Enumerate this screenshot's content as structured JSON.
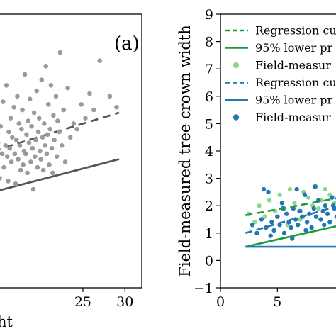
{
  "chart_data": [
    {
      "type": "scatter",
      "panel_label": "(a)",
      "xlabel_fragment": "ht",
      "x_ticks": [
        "25",
        "30"
      ],
      "xlim": [
        14.3,
        32
      ],
      "ylim": [
        -1,
        9
      ],
      "grid": false,
      "colors": {
        "points": "#9a9a9a",
        "line": "#555555"
      },
      "series": [
        {
          "kind": "line",
          "style": "dashed",
          "x": [
            14.3,
            29.3
          ],
          "y": [
            4.0,
            5.4
          ]
        },
        {
          "kind": "line",
          "style": "solid",
          "x": [
            14.3,
            29.3
          ],
          "y": [
            2.5,
            3.7
          ]
        },
        {
          "kind": "points",
          "x": [
            14.7,
            14.9,
            15.1,
            15.2,
            15.4,
            15.5,
            15.6,
            15.8,
            15.9,
            16.0,
            16.1,
            16.2,
            16.3,
            16.4,
            16.5,
            16.6,
            16.8,
            16.9,
            17.0,
            17.1,
            17.2,
            17.3,
            17.4,
            17.5,
            17.6,
            17.7,
            17.8,
            17.9,
            18.0,
            18.1,
            18.2,
            18.3,
            18.4,
            18.5,
            18.6,
            18.7,
            18.8,
            18.9,
            19.0,
            19.1,
            19.2,
            19.3,
            19.4,
            19.5,
            19.6,
            19.7,
            19.8,
            19.9,
            20.0,
            20.1,
            20.2,
            20.3,
            20.4,
            20.5,
            20.6,
            20.7,
            20.8,
            20.9,
            21.0,
            21.1,
            21.2,
            21.3,
            21.4,
            21.5,
            21.6,
            21.8,
            21.9,
            22.0,
            22.2,
            22.3,
            22.5,
            22.7,
            22.9,
            23.2,
            23.5,
            23.9,
            24.3,
            24.8,
            25.3,
            25.8,
            26.3,
            27.0,
            28.2,
            29.0
          ],
          "y": [
            3.6,
            4.3,
            3.0,
            4.9,
            3.9,
            5.8,
            3.4,
            4.2,
            6.4,
            3.8,
            2.9,
            4.7,
            4.1,
            5.2,
            3.6,
            4.5,
            5.6,
            3.9,
            2.8,
            4.4,
            6.0,
            3.7,
            5.0,
            4.2,
            3.3,
            4.8,
            5.5,
            3.5,
            4.0,
            6.8,
            3.9,
            4.6,
            3.2,
            5.1,
            4.3,
            5.9,
            3.6,
            4.9,
            4.1,
            2.6,
            5.4,
            3.8,
            4.4,
            6.2,
            3.4,
            4.7,
            5.2,
            4.0,
            3.7,
            6.6,
            4.5,
            3.3,
            5.0,
            4.2,
            7.1,
            3.9,
            4.6,
            5.7,
            3.5,
            4.8,
            6.4,
            4.1,
            3.2,
            5.3,
            4.4,
            6.0,
            3.8,
            5.1,
            4.7,
            7.6,
            4.2,
            5.5,
            3.6,
            6.3,
            4.5,
            5.0,
            4.8,
            5.7,
            5.2,
            6.1,
            5.5,
            7.3,
            6.0,
            5.6
          ]
        }
      ]
    },
    {
      "type": "scatter",
      "ylabel": "Field-measured tree crown width",
      "x_ticks": [
        "0",
        "5"
      ],
      "y_ticks": [
        "−1",
        "0",
        "1",
        "2",
        "3",
        "4",
        "5",
        "6",
        "7",
        "8",
        "9"
      ],
      "xlim": [
        0,
        11.2
      ],
      "ylim": [
        -1,
        9
      ],
      "grid": false,
      "legend_placement": "top-right",
      "legend": [
        {
          "label": "Regression cu",
          "marker": "dashed-line",
          "color": "#1a9c3c"
        },
        {
          "label": "95% lower pr",
          "marker": "solid-line",
          "color": "#1a9c3c"
        },
        {
          "label": "Field-measur",
          "marker": "dot",
          "color": "#8fd694"
        },
        {
          "label": "Regression cu",
          "marker": "dashed-line",
          "color": "#1f77b4"
        },
        {
          "label": "95% lower pr",
          "marker": "solid-line",
          "color": "#1f77b4"
        },
        {
          "label": "Field-measur",
          "marker": "dot",
          "color": "#1f77b4"
        }
      ],
      "series": [
        {
          "kind": "line",
          "style": "dashed",
          "color": "#1a9c3c",
          "x": [
            2.2,
            11.2
          ],
          "y": [
            1.65,
            2.35
          ]
        },
        {
          "kind": "line",
          "style": "solid",
          "color": "#1a9c3c",
          "x": [
            2.2,
            11.2
          ],
          "y": [
            0.5,
            1.35
          ]
        },
        {
          "kind": "line",
          "style": "dashed",
          "color": "#1f77b4",
          "x": [
            2.2,
            11.2
          ],
          "y": [
            1.0,
            2.1
          ]
        },
        {
          "kind": "line",
          "style": "solid",
          "color": "#1f77b4",
          "x": [
            2.2,
            11.2
          ],
          "y": [
            0.5,
            0.5
          ]
        },
        {
          "kind": "points",
          "color": "#8fd694",
          "x": [
            2.5,
            3.0,
            3.4,
            3.9,
            4.3,
            4.8,
            5.2,
            5.6,
            6.1,
            6.5,
            6.9,
            7.3,
            7.7,
            8.1,
            8.4,
            8.8,
            9.2,
            9.6,
            10.0,
            10.4,
            10.8,
            5.9,
            7.0,
            8.6
          ],
          "y": [
            1.7,
            1.4,
            2.0,
            1.6,
            2.2,
            1.8,
            2.4,
            1.9,
            2.6,
            2.1,
            1.8,
            2.5,
            2.3,
            2.0,
            2.7,
            2.2,
            2.6,
            2.4,
            2.1,
            2.8,
            2.3,
            1.3,
            1.5,
            1.9
          ]
        },
        {
          "kind": "points",
          "color": "#1f77b4",
          "x": [
            2.8,
            3.2,
            3.6,
            4.0,
            4.2,
            4.5,
            4.7,
            5.0,
            5.2,
            5.4,
            5.6,
            5.8,
            6.0,
            6.2,
            6.4,
            6.6,
            6.8,
            7.0,
            7.2,
            7.4,
            7.6,
            7.8,
            8.0,
            8.2,
            8.4,
            8.6,
            8.8,
            9.0,
            9.2,
            9.4,
            9.6,
            9.8,
            10.0,
            10.2,
            10.4,
            10.6,
            10.8,
            11.0,
            4.4,
            5.5,
            6.7,
            7.5,
            8.3,
            9.1,
            9.9,
            10.7,
            3.8,
            6.3
          ],
          "y": [
            1.3,
            1.0,
            1.5,
            1.2,
            2.5,
            1.4,
            1.1,
            1.6,
            1.3,
            2.1,
            1.0,
            1.7,
            1.4,
            1.2,
            1.9,
            1.5,
            1.3,
            1.8,
            1.6,
            2.4,
            1.4,
            1.7,
            1.2,
            1.9,
            1.6,
            2.2,
            1.5,
            1.8,
            2.0,
            1.7,
            1.4,
            2.3,
            1.9,
            1.6,
            2.5,
            2.1,
            1.8,
            2.2,
            0.9,
            1.9,
            2.6,
            1.1,
            2.7,
            1.3,
            2.0,
            1.5,
            2.6,
            0.8
          ]
        }
      ]
    }
  ]
}
